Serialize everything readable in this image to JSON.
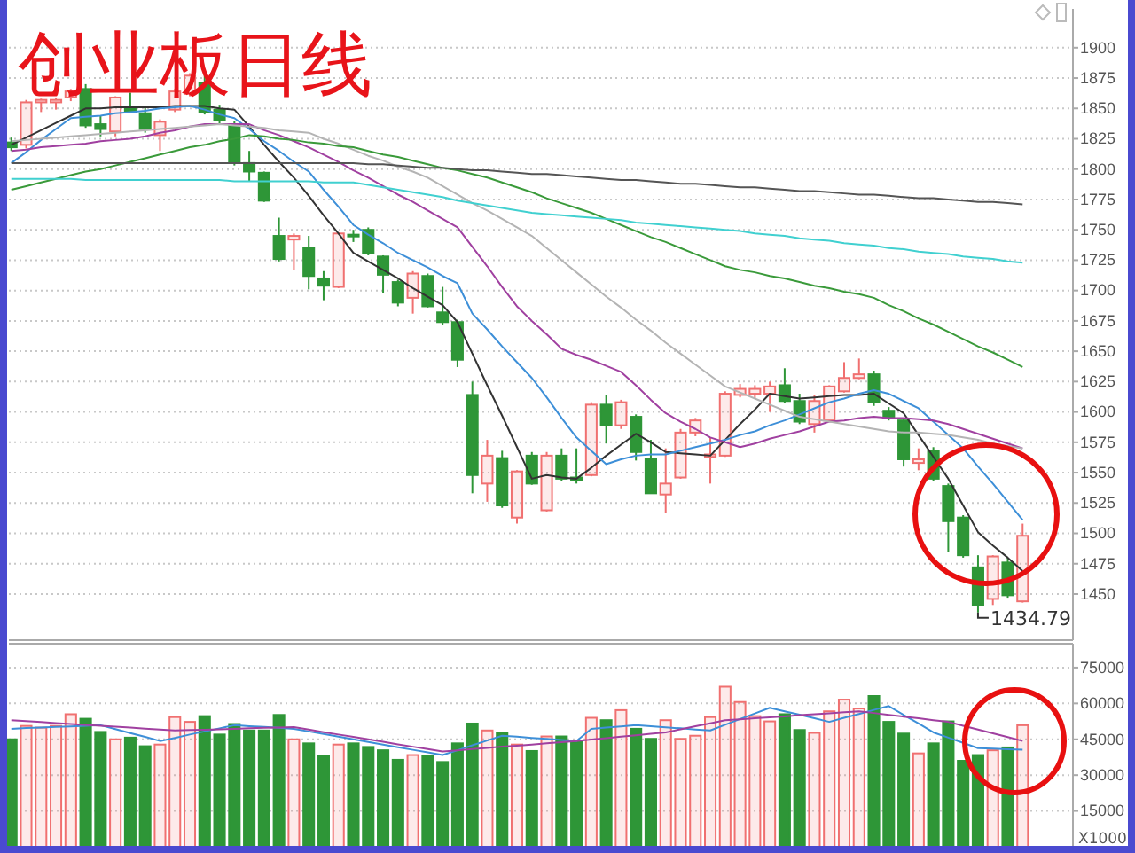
{
  "chart_data": [
    {
      "type": "candlestick",
      "title": "创业板日线",
      "annotations": [
        "1434.79"
      ],
      "categories": [
        null,
        null,
        null,
        null,
        null,
        null,
        null,
        null,
        null,
        null,
        null,
        null,
        null,
        null,
        null,
        null,
        null,
        null,
        null,
        null,
        null,
        null,
        null,
        null,
        null,
        null,
        null,
        null,
        null,
        null,
        null,
        null,
        null,
        null,
        null,
        null,
        null,
        null,
        null,
        null,
        null,
        null,
        null,
        null,
        null,
        null,
        null,
        null,
        null,
        null,
        null,
        null,
        null,
        null,
        null,
        null,
        null,
        null,
        null,
        null,
        null,
        null,
        null,
        null,
        null,
        null,
        null,
        null,
        null
      ],
      "ohlc": [
        [
          1822,
          1826,
          1815,
          1818
        ],
        [
          1820,
          1857,
          1817,
          1855
        ],
        [
          1855,
          1858,
          1847,
          1857
        ],
        [
          1855,
          1859,
          1849,
          1857
        ],
        [
          1859,
          1866,
          1856,
          1864
        ],
        [
          1866,
          1870,
          1834,
          1836
        ],
        [
          1837,
          1844,
          1827,
          1833
        ],
        [
          1831,
          1860,
          1827,
          1859
        ],
        [
          1850,
          1863,
          1846,
          1847
        ],
        [
          1846,
          1851,
          1830,
          1833
        ],
        [
          1828,
          1841,
          1815,
          1839
        ],
        [
          1849,
          1866,
          1847,
          1864
        ],
        [
          1862,
          1879,
          1860,
          1877
        ],
        [
          1871,
          1878,
          1845,
          1847
        ],
        [
          1849,
          1853,
          1837,
          1840
        ],
        [
          1837,
          1840,
          1803,
          1805
        ],
        [
          1805,
          1815,
          1790,
          1798
        ],
        [
          1797,
          1798,
          1773,
          1774
        ],
        [
          1745,
          1760,
          1724,
          1726
        ],
        [
          1742,
          1747,
          1717,
          1745
        ],
        [
          1735,
          1745,
          1701,
          1712
        ],
        [
          1710,
          1716,
          1692,
          1704
        ],
        [
          1703,
          1748,
          1702,
          1747
        ],
        [
          1746,
          1750,
          1740,
          1745
        ],
        [
          1750,
          1752,
          1729,
          1731
        ],
        [
          1728,
          1729,
          1698,
          1713
        ],
        [
          1707,
          1709,
          1687,
          1690
        ],
        [
          1694,
          1716,
          1681,
          1714
        ],
        [
          1712,
          1714,
          1686,
          1687
        ],
        [
          1682,
          1703,
          1672,
          1674
        ],
        [
          1674,
          1676,
          1637,
          1643
        ],
        [
          1614,
          1625,
          1533,
          1548
        ],
        [
          1541,
          1577,
          1526,
          1564
        ],
        [
          1562,
          1568,
          1521,
          1523
        ],
        [
          1513,
          1552,
          1508,
          1551
        ],
        [
          1564,
          1567,
          1540,
          1541
        ],
        [
          1519,
          1567,
          1518,
          1564
        ],
        [
          1564,
          1570,
          1543,
          1545
        ],
        [
          1546,
          1570,
          1541,
          1544
        ],
        [
          1548,
          1608,
          1547,
          1606
        ],
        [
          1606,
          1614,
          1574,
          1589
        ],
        [
          1589,
          1610,
          1586,
          1608
        ],
        [
          1596,
          1598,
          1560,
          1567
        ],
        [
          1561,
          1577,
          1533,
          1533
        ],
        [
          1532,
          1570,
          1517,
          1541
        ],
        [
          1546,
          1586,
          1545,
          1583
        ],
        [
          1583,
          1595,
          1580,
          1593
        ],
        [
          1563,
          1579,
          1541,
          1565
        ],
        [
          1564,
          1617,
          1563,
          1615
        ],
        [
          1614,
          1623,
          1612,
          1619
        ],
        [
          1615,
          1622,
          1611,
          1619
        ],
        [
          1615,
          1625,
          1600,
          1621
        ],
        [
          1622,
          1636,
          1607,
          1609
        ],
        [
          1609,
          1615,
          1590,
          1592
        ],
        [
          1590,
          1614,
          1583,
          1609
        ],
        [
          1593,
          1622,
          1592,
          1621
        ],
        [
          1617,
          1641,
          1616,
          1628
        ],
        [
          1628,
          1644,
          1627,
          1631
        ],
        [
          1631,
          1634,
          1605,
          1608
        ],
        [
          1601,
          1604,
          1593,
          1595
        ],
        [
          1593,
          1594,
          1555,
          1561
        ],
        [
          1558,
          1570,
          1552,
          1561
        ],
        [
          1568,
          1571,
          1543,
          1545
        ],
        [
          1539,
          1541,
          1485,
          1510
        ],
        [
          1513,
          1515,
          1480,
          1482
        ],
        [
          1472,
          1482,
          1434.79,
          1441
        ],
        [
          1446,
          1482,
          1441,
          1481
        ],
        [
          1476,
          1480,
          1447,
          1449
        ],
        [
          1444,
          1508,
          1443,
          1498
        ]
      ],
      "colors": [
        "#2e9637",
        "#f07070",
        "#f07070",
        "#f07070",
        "#f07070",
        "#2e9637",
        "#2e9637",
        "#f07070",
        "#2e9637",
        "#2e9637",
        "#f07070",
        "#f07070",
        "#f07070",
        "#2e9637",
        "#2e9637",
        "#2e9637",
        "#2e9637",
        "#2e9637",
        "#2e9637",
        "#f07070",
        "#2e9637",
        "#2e9637",
        "#f07070",
        "#2e9637",
        "#2e9637",
        "#2e9637",
        "#2e9637",
        "#f07070",
        "#2e9637",
        "#2e9637",
        "#2e9637",
        "#2e9637",
        "#f07070",
        "#2e9637",
        "#f07070",
        "#2e9637",
        "#f07070",
        "#2e9637",
        "#2e9637",
        "#f07070",
        "#2e9637",
        "#f07070",
        "#2e9637",
        "#2e9637",
        "#f07070",
        "#f07070",
        "#f07070",
        "#f07070",
        "#f07070",
        "#f07070",
        "#f07070",
        "#f07070",
        "#2e9637",
        "#2e9637",
        "#f07070",
        "#f07070",
        "#f07070",
        "#f07070",
        "#2e9637",
        "#2e9637",
        "#2e9637",
        "#f07070",
        "#2e9637",
        "#2e9637",
        "#2e9637",
        "#2e9637",
        "#f07070",
        "#2e9637",
        "#f07070"
      ],
      "ylim": [
        1412,
        1932
      ],
      "yticks": [
        1450,
        1475,
        1500,
        1525,
        1550,
        1575,
        1600,
        1625,
        1650,
        1675,
        1700,
        1725,
        1750,
        1775,
        1800,
        1825,
        1850,
        1875,
        1900
      ],
      "grid": "y",
      "tick_labels": "y",
      "series": [
        {
          "type": "line",
          "color": "#333333",
          "values": [
            1820,
            1826,
            1832,
            1838,
            1844,
            1850,
            1850,
            1851,
            1851,
            1851,
            1851,
            1852,
            1852,
            1852,
            1850,
            1849,
            1835,
            1820,
            1806,
            1793,
            1778,
            1762,
            1747,
            1731,
            1724,
            1717,
            1710,
            1702,
            1695,
            1688,
            1674,
            1648,
            1622,
            1597,
            1571,
            1545,
            1548,
            1546,
            1545,
            1554,
            1564,
            1573,
            1582,
            1575,
            1567,
            1566,
            1565,
            1564,
            1577,
            1590,
            1602,
            1615,
            1613,
            1611,
            1612,
            1613,
            1614,
            1614,
            1615,
            1607,
            1599,
            1581,
            1563,
            1545,
            1523,
            1501,
            1490,
            1480,
            1469
          ]
        },
        {
          "type": "line",
          "color": "#3d8fd8",
          "values": [
            1805,
            1814,
            1824,
            1833,
            1842,
            1843,
            1844,
            1846,
            1847,
            1848,
            1850,
            1851,
            1852,
            1849,
            1845,
            1842,
            1833,
            1823,
            1815,
            1806,
            1798,
            1783,
            1769,
            1754,
            1746,
            1739,
            1731,
            1725,
            1719,
            1712,
            1706,
            1681,
            1668,
            1654,
            1641,
            1628,
            1612,
            1595,
            1579,
            1568,
            1557,
            1561,
            1564,
            1565,
            1565,
            1568,
            1571,
            1574,
            1577,
            1581,
            1584,
            1589,
            1593,
            1598,
            1603,
            1608,
            1611,
            1615,
            1618,
            1615,
            1609,
            1603,
            1592,
            1581,
            1570,
            1555,
            1541,
            1526,
            1511
          ]
        },
        {
          "type": "line",
          "color": "#a040a0",
          "values": [
            1815,
            1816,
            1818,
            1819,
            1820,
            1821,
            1823,
            1824,
            1825,
            1827,
            1830,
            1832,
            1835,
            1837,
            1837,
            1837,
            1837,
            1832,
            1828,
            1823,
            1818,
            1812,
            1806,
            1799,
            1793,
            1786,
            1779,
            1773,
            1766,
            1759,
            1752,
            1736,
            1720,
            1703,
            1687,
            1675,
            1664,
            1652,
            1647,
            1643,
            1638,
            1633,
            1622,
            1610,
            1599,
            1592,
            1586,
            1579,
            1575,
            1571,
            1574,
            1578,
            1581,
            1584,
            1588,
            1592,
            1593,
            1595,
            1596,
            1595,
            1595,
            1594,
            1593,
            1590,
            1586,
            1582,
            1578,
            1574,
            1570
          ]
        },
        {
          "type": "line",
          "color": "#b4b4b4",
          "values": [
            1823,
            1824,
            1825,
            1826,
            1827,
            1828,
            1829,
            1830,
            1831,
            1832,
            1833,
            1834,
            1835,
            1836,
            1837,
            1836,
            1835,
            1834,
            1832,
            1831,
            1830,
            1825,
            1821,
            1816,
            1811,
            1807,
            1802,
            1798,
            1793,
            1786,
            1779,
            1772,
            1766,
            1759,
            1752,
            1745,
            1735,
            1725,
            1715,
            1705,
            1695,
            1686,
            1676,
            1667,
            1657,
            1648,
            1639,
            1630,
            1621,
            1616,
            1611,
            1606,
            1601,
            1596,
            1594,
            1592,
            1590,
            1588,
            1586,
            1584,
            1583,
            1583,
            1582,
            1581,
            1579,
            1577,
            1574,
            1572,
            1570
          ]
        },
        {
          "type": "line",
          "color": "#3a9a3a",
          "values": [
            1783,
            1786,
            1789,
            1792,
            1795,
            1798,
            1800,
            1803,
            1806,
            1809,
            1812,
            1815,
            1818,
            1820,
            1823,
            1825,
            1828,
            1827,
            1825,
            1824,
            1822,
            1821,
            1819,
            1818,
            1815,
            1812,
            1810,
            1807,
            1804,
            1801,
            1799,
            1796,
            1793,
            1789,
            1785,
            1781,
            1776,
            1772,
            1768,
            1764,
            1759,
            1754,
            1749,
            1744,
            1740,
            1735,
            1730,
            1725,
            1720,
            1717,
            1715,
            1712,
            1710,
            1707,
            1704,
            1702,
            1699,
            1697,
            1694,
            1688,
            1683,
            1677,
            1672,
            1666,
            1660,
            1654,
            1649,
            1643,
            1637
          ]
        },
        {
          "type": "line",
          "color": "#40d0d0",
          "values": [
            1792,
            1792,
            1792,
            1792,
            1792,
            1791,
            1791,
            1791,
            1791,
            1791,
            1791,
            1791,
            1791,
            1791,
            1791,
            1790,
            1790,
            1790,
            1790,
            1790,
            1790,
            1789,
            1789,
            1789,
            1787,
            1785,
            1783,
            1781,
            1779,
            1777,
            1774,
            1772,
            1770,
            1768,
            1766,
            1764,
            1763,
            1762,
            1761,
            1760,
            1759,
            1758,
            1756,
            1755,
            1754,
            1753,
            1752,
            1751,
            1750,
            1749,
            1747,
            1746,
            1745,
            1743,
            1742,
            1741,
            1739,
            1738,
            1737,
            1735,
            1734,
            1732,
            1731,
            1730,
            1728,
            1727,
            1726,
            1724,
            1723
          ]
        },
        {
          "type": "line",
          "color": "#555555",
          "values": [
            1805,
            1805,
            1805,
            1805,
            1805,
            1805,
            1805,
            1805,
            1805,
            1805,
            1805,
            1805,
            1805,
            1805,
            1805,
            1805,
            1805,
            1805,
            1805,
            1805,
            1805,
            1805,
            1805,
            1805,
            1804,
            1804,
            1803,
            1802,
            1801,
            1801,
            1800,
            1799,
            1799,
            1798,
            1797,
            1796,
            1796,
            1795,
            1794,
            1793,
            1792,
            1791,
            1791,
            1790,
            1789,
            1788,
            1788,
            1787,
            1786,
            1785,
            1785,
            1784,
            1783,
            1782,
            1782,
            1781,
            1780,
            1779,
            1779,
            1778,
            1777,
            1776,
            1776,
            1775,
            1774,
            1773,
            1773,
            1772,
            1771
          ]
        }
      ]
    },
    {
      "type": "bar",
      "ylabel": "X1000",
      "categories": [
        null,
        null,
        null,
        null,
        null,
        null,
        null,
        null,
        null,
        null,
        null,
        null,
        null,
        null,
        null,
        null,
        null,
        null,
        null,
        null,
        null,
        null,
        null,
        null,
        null,
        null,
        null,
        null,
        null,
        null,
        null,
        null,
        null,
        null,
        null,
        null,
        null,
        null,
        null,
        null,
        null,
        null,
        null,
        null,
        null,
        null,
        null,
        null,
        null,
        null,
        null,
        null,
        null,
        null,
        null,
        null,
        null,
        null,
        null,
        null,
        null,
        null,
        null,
        null,
        null,
        null,
        null,
        null,
        null
      ],
      "values": [
        45000,
        50600,
        49900,
        50600,
        55500,
        53600,
        48100,
        45000,
        45700,
        42100,
        42800,
        54300,
        52300,
        54700,
        47000,
        51400,
        48700,
        48700,
        55200,
        45000,
        43300,
        37900,
        42800,
        43300,
        41800,
        40400,
        36400,
        38400,
        37900,
        35500,
        43300,
        51600,
        48700,
        47700,
        42800,
        40100,
        46200,
        46200,
        44000,
        54000,
        53000,
        57200,
        49400,
        45200,
        53000,
        45200,
        46500,
        54300,
        67000,
        60600,
        54700,
        52500,
        55500,
        48900,
        47700,
        56700,
        61600,
        57900,
        63100,
        52300,
        47400,
        39100,
        43300,
        52500,
        36000,
        38400,
        40400,
        41600,
        50900
      ],
      "colors": [
        "#2e9637",
        "#f07070",
        "#f07070",
        "#f07070",
        "#f07070",
        "#2e9637",
        "#2e9637",
        "#f07070",
        "#2e9637",
        "#2e9637",
        "#f07070",
        "#f07070",
        "#f07070",
        "#2e9637",
        "#2e9637",
        "#2e9637",
        "#2e9637",
        "#2e9637",
        "#2e9637",
        "#f07070",
        "#2e9637",
        "#2e9637",
        "#f07070",
        "#2e9637",
        "#2e9637",
        "#2e9637",
        "#2e9637",
        "#f07070",
        "#2e9637",
        "#2e9637",
        "#2e9637",
        "#2e9637",
        "#f07070",
        "#2e9637",
        "#f07070",
        "#2e9637",
        "#f07070",
        "#2e9637",
        "#2e9637",
        "#f07070",
        "#2e9637",
        "#f07070",
        "#2e9637",
        "#2e9637",
        "#f07070",
        "#f07070",
        "#f07070",
        "#f07070",
        "#f07070",
        "#f07070",
        "#f07070",
        "#f07070",
        "#2e9637",
        "#2e9637",
        "#f07070",
        "#f07070",
        "#f07070",
        "#f07070",
        "#2e9637",
        "#2e9637",
        "#2e9637",
        "#f07070",
        "#2e9637",
        "#2e9637",
        "#2e9637",
        "#2e9637",
        "#f07070",
        "#2e9637",
        "#f07070"
      ],
      "ylim": [
        0,
        85000
      ],
      "yticks": [
        15000,
        30000,
        45000,
        60000,
        75000
      ],
      "grid": "y",
      "tick_labels": "y",
      "series": [
        {
          "type": "line",
          "color": "#3d8fd8",
          "values": [
            49400,
            49700,
            49900,
            50200,
            50400,
            50700,
            50900,
            49300,
            47600,
            46000,
            44300,
            45600,
            47000,
            48300,
            49600,
            50900,
            50500,
            50200,
            49800,
            49400,
            48300,
            47200,
            46100,
            45000,
            43900,
            42800,
            41700,
            40600,
            39500,
            38400,
            40400,
            42500,
            44500,
            46500,
            46100,
            45600,
            45200,
            44700,
            44300,
            49400,
            49900,
            50400,
            50900,
            50500,
            50000,
            49600,
            49100,
            48700,
            51100,
            53500,
            55800,
            58200,
            56700,
            55300,
            53800,
            52300,
            54000,
            55600,
            57300,
            58900,
            55200,
            51600,
            47900,
            45700,
            43500,
            41300,
            41100,
            40800,
            40600
          ]
        },
        {
          "type": "line",
          "color": "#a040a0",
          "values": [
            53000,
            52600,
            52200,
            51800,
            51400,
            51000,
            50700,
            50300,
            49900,
            49500,
            49100,
            48700,
            48900,
            49000,
            49200,
            49400,
            49600,
            49800,
            49900,
            50100,
            49100,
            48000,
            47000,
            46000,
            45000,
            44000,
            42900,
            41900,
            40900,
            39900,
            40400,
            40900,
            41400,
            41900,
            42300,
            42800,
            43300,
            43800,
            44300,
            44900,
            45500,
            46100,
            46700,
            47300,
            47900,
            49200,
            50500,
            51700,
            53000,
            53400,
            53800,
            54200,
            54600,
            55100,
            55500,
            55900,
            56300,
            56700,
            56000,
            55200,
            54500,
            53800,
            53000,
            52300,
            50700,
            49100,
            47500,
            45900,
            44300
          ]
        }
      ]
    }
  ]
}
